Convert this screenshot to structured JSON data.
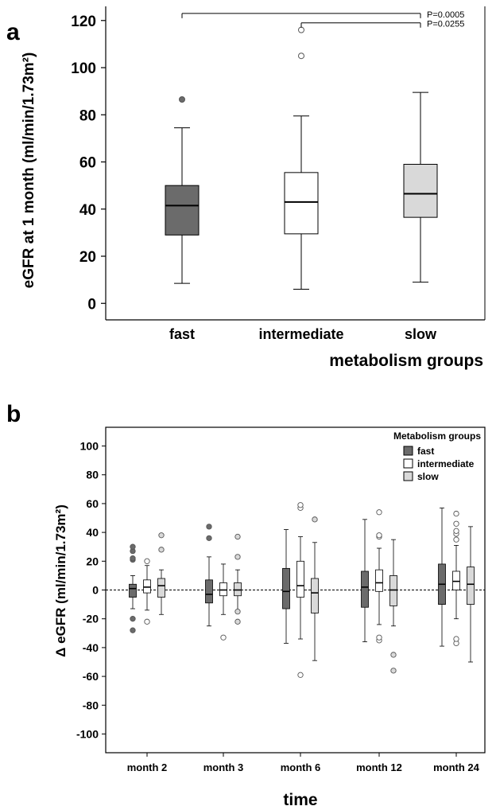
{
  "colors": {
    "fast": "#6b6b6b",
    "intermediate": "#ffffff",
    "slow": "#d9d9d9",
    "outlier_star": "#cfcfcf"
  },
  "chart_data": [
    {
      "panel": "a",
      "type": "box",
      "ylabel": "eGFR at 1 month (ml/min/1.73m²)",
      "xlabel": "metabolism groups",
      "ylim": [
        -7,
        126
      ],
      "yticks": [
        0,
        20,
        40,
        60,
        80,
        100,
        120
      ],
      "grid": false,
      "categories": [
        "fast",
        "intermediate",
        "slow"
      ],
      "series": [
        {
          "name": "fast",
          "color_key": "fast",
          "boxes": [
            {
              "min": 8.5,
              "q1": 29,
              "median": 41.5,
              "q3": 50,
              "max": 74.5,
              "outliers": [
                86.5
              ]
            }
          ]
        },
        {
          "name": "intermediate",
          "color_key": "intermediate",
          "boxes": [
            {
              "min": 6,
              "q1": 29.5,
              "median": 43,
              "q3": 55.5,
              "max": 79.5,
              "outliers": [
                105,
                116
              ]
            }
          ]
        },
        {
          "name": "slow",
          "color_key": "slow",
          "boxes": [
            {
              "min": 9,
              "q1": 36.5,
              "median": 46.5,
              "q3": 59,
              "max": 89.5,
              "outliers": []
            }
          ]
        }
      ],
      "annotations": [
        {
          "from": "fast",
          "to": "slow",
          "y": 123,
          "label": "P=0.0005"
        },
        {
          "from": "intermediate",
          "to": "slow",
          "y": 119,
          "label": "P=0.0255"
        }
      ]
    },
    {
      "panel": "b",
      "type": "box",
      "ylabel": "Δ eGFR (ml/min/1.73m²)",
      "xlabel": "time",
      "ylim": [
        -113,
        113
      ],
      "yticks": [
        -100,
        -80,
        -60,
        -40,
        -20,
        0,
        20,
        40,
        60,
        80,
        100
      ],
      "reference_line": 0,
      "grid": false,
      "legend": {
        "title": "Metabolism groups",
        "position": "top-right"
      },
      "categories": [
        "month 2",
        "month 3",
        "month 6",
        "month 12",
        "month 24"
      ],
      "series": [
        {
          "name": "fast",
          "color_key": "fast",
          "boxes": [
            {
              "min": -13,
              "q1": -5,
              "median": 1,
              "q3": 4,
              "max": 10,
              "outliers": [
                -28,
                -20,
                21,
                22,
                27,
                30
              ]
            },
            {
              "min": -25,
              "q1": -9,
              "median": -3,
              "q3": 7,
              "max": 23,
              "outliers": [
                36,
                44
              ]
            },
            {
              "min": -37,
              "q1": -13,
              "median": -1,
              "q3": 15,
              "max": 42,
              "outliers": []
            },
            {
              "min": -36,
              "q1": -12,
              "median": 2,
              "q3": 13,
              "max": 49,
              "outliers": []
            },
            {
              "min": -39,
              "q1": -10,
              "median": 4,
              "q3": 18,
              "max": 57,
              "outliers": []
            }
          ]
        },
        {
          "name": "intermediate",
          "color_key": "intermediate",
          "boxes": [
            {
              "min": -14,
              "q1": -2,
              "median": 2,
              "q3": 7,
              "max": 17,
              "outliers": [
                -22,
                20
              ]
            },
            {
              "min": -17,
              "q1": -4,
              "median": 0,
              "q3": 5,
              "max": 18,
              "outliers": [
                -33
              ]
            },
            {
              "min": -34,
              "q1": -5,
              "median": 3,
              "q3": 20,
              "max": 37,
              "outliers": [
                -59,
                57,
                59
              ]
            },
            {
              "min": -24,
              "q1": -1,
              "median": 5,
              "q3": 14,
              "max": 29,
              "outliers": [
                -35,
                -33,
                37,
                38,
                54
              ]
            },
            {
              "min": -20,
              "q1": 0,
              "median": 6,
              "q3": 13,
              "max": 31,
              "outliers": [
                -37,
                -34,
                35,
                39,
                41,
                46,
                53
              ]
            }
          ]
        },
        {
          "name": "slow",
          "color_key": "slow",
          "boxes": [
            {
              "min": -17,
              "q1": -5,
              "median": 3,
              "q3": 8,
              "max": 14,
              "outliers": [
                28,
                38
              ]
            },
            {
              "min": -14,
              "q1": -4,
              "median": 0,
              "q3": 5,
              "max": 14,
              "outliers": [
                -22,
                -15,
                23,
                37
              ]
            },
            {
              "min": -49,
              "q1": -16,
              "median": -2,
              "q3": 8,
              "max": 33,
              "outliers": [
                49
              ]
            },
            {
              "min": -25,
              "q1": -11,
              "median": 0,
              "q3": 10,
              "max": 35,
              "outliers": [
                -56,
                -45
              ]
            },
            {
              "min": -50,
              "q1": -10,
              "median": 4,
              "q3": 16,
              "max": 44,
              "outliers": []
            }
          ]
        }
      ]
    }
  ]
}
